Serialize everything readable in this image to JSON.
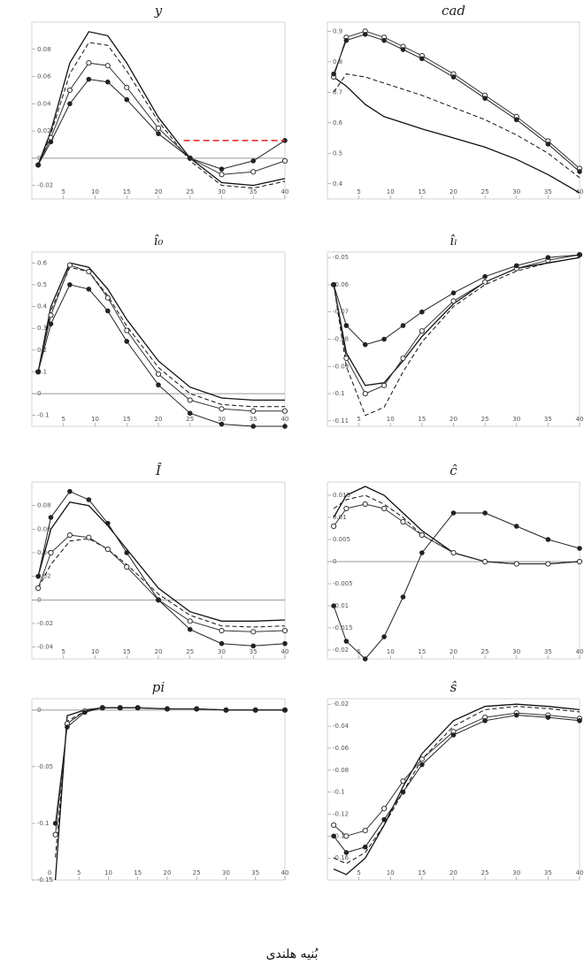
{
  "chart_data": [
    {
      "type": "line",
      "title": "y",
      "x": [
        1,
        3,
        6,
        9,
        12,
        15,
        20,
        25,
        30,
        35,
        40
      ],
      "xlim": [
        0,
        40
      ],
      "xticks": [
        5,
        10,
        15,
        20,
        25,
        30,
        35,
        40
      ],
      "ylim": [
        -0.03,
        0.1
      ],
      "yticks": [
        -0.02,
        0,
        0.02,
        0.04,
        0.06,
        0.08
      ],
      "zero_line": true,
      "reference_line": {
        "y": 0.013,
        "x": [
          24,
          40
        ],
        "color": "#e02020"
      },
      "series": [
        {
          "style": "solid",
          "color": "#111",
          "values": [
            -0.005,
            0.02,
            0.07,
            0.093,
            0.09,
            0.07,
            0.03,
            0.0,
            -0.018,
            -0.02,
            -0.015
          ]
        },
        {
          "style": "dashed",
          "color": "#111",
          "values": [
            -0.005,
            0.018,
            0.062,
            0.085,
            0.083,
            0.064,
            0.027,
            -0.002,
            -0.02,
            -0.022,
            -0.017
          ]
        },
        {
          "style": "circles",
          "color": "#333",
          "values": [
            -0.005,
            0.015,
            0.05,
            0.07,
            0.068,
            0.052,
            0.022,
            0.0,
            -0.012,
            -0.01,
            -0.002
          ]
        },
        {
          "style": "dots",
          "color": "#222",
          "values": [
            -0.005,
            0.012,
            0.04,
            0.058,
            0.056,
            0.043,
            0.018,
            0.0,
            -0.008,
            -0.002,
            0.013
          ]
        }
      ]
    },
    {
      "type": "line",
      "title": "cad",
      "x": [
        1,
        3,
        6,
        9,
        12,
        15,
        20,
        25,
        30,
        35,
        40
      ],
      "xlim": [
        0,
        40
      ],
      "xticks": [
        5,
        10,
        15,
        20,
        25,
        30,
        35,
        40
      ],
      "ylim": [
        0.35,
        0.93
      ],
      "yticks": [
        0.4,
        0.5,
        0.6,
        0.7,
        0.8,
        0.9
      ],
      "zero_line": false,
      "series": [
        {
          "style": "solid",
          "color": "#111",
          "values": [
            0.75,
            0.72,
            0.66,
            0.62,
            0.6,
            0.58,
            0.55,
            0.52,
            0.48,
            0.43,
            0.37
          ]
        },
        {
          "style": "dashed",
          "color": "#111",
          "values": [
            0.7,
            0.76,
            0.75,
            0.73,
            0.71,
            0.69,
            0.65,
            0.61,
            0.56,
            0.5,
            0.42
          ]
        },
        {
          "style": "circles",
          "color": "#333",
          "values": [
            0.75,
            0.88,
            0.9,
            0.88,
            0.85,
            0.82,
            0.76,
            0.69,
            0.62,
            0.54,
            0.45
          ]
        },
        {
          "style": "dots",
          "color": "#222",
          "values": [
            0.76,
            0.87,
            0.89,
            0.87,
            0.84,
            0.81,
            0.75,
            0.68,
            0.61,
            0.53,
            0.44
          ]
        }
      ]
    },
    {
      "type": "line",
      "title": "î₀",
      "x": [
        1,
        3,
        6,
        9,
        12,
        15,
        20,
        25,
        30,
        35,
        40
      ],
      "xlim": [
        0,
        40
      ],
      "xticks": [
        5,
        10,
        15,
        20,
        25,
        30,
        35,
        40
      ],
      "ylim": [
        -0.15,
        0.65
      ],
      "yticks": [
        -0.1,
        0,
        0.1,
        0.2,
        0.3,
        0.4,
        0.5,
        0.6
      ],
      "zero_line": true,
      "series": [
        {
          "style": "solid",
          "color": "#111",
          "values": [
            0.1,
            0.4,
            0.6,
            0.58,
            0.48,
            0.34,
            0.15,
            0.03,
            -0.02,
            -0.03,
            -0.03
          ]
        },
        {
          "style": "dashed",
          "color": "#111",
          "values": [
            0.1,
            0.38,
            0.58,
            0.56,
            0.45,
            0.31,
            0.12,
            0.0,
            -0.05,
            -0.06,
            -0.06
          ]
        },
        {
          "style": "circles",
          "color": "#333",
          "values": [
            0.1,
            0.36,
            0.59,
            0.56,
            0.44,
            0.29,
            0.09,
            -0.03,
            -0.07,
            -0.08,
            -0.08
          ]
        },
        {
          "style": "dots",
          "color": "#222",
          "values": [
            0.1,
            0.32,
            0.5,
            0.48,
            0.38,
            0.24,
            0.04,
            -0.09,
            -0.14,
            -0.15,
            -0.15
          ]
        }
      ]
    },
    {
      "type": "line",
      "title": "îₗ",
      "x": [
        1,
        3,
        6,
        9,
        12,
        15,
        20,
        25,
        30,
        35,
        40
      ],
      "xlim": [
        0,
        40
      ],
      "xticks": [
        5,
        10,
        15,
        20,
        25,
        30,
        35,
        40
      ],
      "ylim": [
        -0.112,
        -0.048
      ],
      "yticks": [
        -0.11,
        -0.1,
        -0.09,
        -0.08,
        -0.07,
        -0.06,
        -0.05
      ],
      "zero_line": false,
      "series": [
        {
          "style": "solid",
          "color": "#111",
          "values": [
            -0.06,
            -0.085,
            -0.097,
            -0.096,
            -0.088,
            -0.079,
            -0.067,
            -0.059,
            -0.054,
            -0.052,
            -0.05
          ]
        },
        {
          "style": "dashed",
          "color": "#111",
          "values": [
            -0.06,
            -0.09,
            -0.108,
            -0.105,
            -0.092,
            -0.081,
            -0.068,
            -0.06,
            -0.055,
            -0.052,
            -0.05
          ]
        },
        {
          "style": "circles",
          "color": "#333",
          "values": [
            -0.06,
            -0.087,
            -0.1,
            -0.097,
            -0.087,
            -0.077,
            -0.066,
            -0.059,
            -0.054,
            -0.051,
            -0.049
          ]
        },
        {
          "style": "dots",
          "color": "#222",
          "values": [
            -0.06,
            -0.075,
            -0.082,
            -0.08,
            -0.075,
            -0.07,
            -0.063,
            -0.057,
            -0.053,
            -0.05,
            -0.049
          ]
        }
      ]
    },
    {
      "type": "line",
      "title": "Î",
      "x": [
        1,
        3,
        6,
        9,
        12,
        15,
        20,
        25,
        30,
        35,
        40
      ],
      "xlim": [
        0,
        40
      ],
      "xticks": [
        5,
        10,
        15,
        20,
        25,
        30,
        35,
        40
      ],
      "ylim": [
        -0.05,
        0.1
      ],
      "yticks": [
        -0.04,
        -0.02,
        0,
        0.02,
        0.04,
        0.06,
        0.08
      ],
      "zero_line": true,
      "series": [
        {
          "style": "solid",
          "color": "#111",
          "values": [
            0.02,
            0.06,
            0.083,
            0.08,
            0.063,
            0.043,
            0.01,
            -0.01,
            -0.018,
            -0.018,
            -0.017
          ]
        },
        {
          "style": "dashed",
          "color": "#111",
          "values": [
            0.01,
            0.03,
            0.05,
            0.052,
            0.043,
            0.03,
            0.005,
            -0.013,
            -0.022,
            -0.023,
            -0.022
          ]
        },
        {
          "style": "circles",
          "color": "#333",
          "values": [
            0.01,
            0.04,
            0.055,
            0.053,
            0.043,
            0.028,
            0.0,
            -0.018,
            -0.026,
            -0.027,
            -0.026
          ]
        },
        {
          "style": "dots",
          "color": "#222",
          "values": [
            0.02,
            0.07,
            0.092,
            0.085,
            0.065,
            0.04,
            0.0,
            -0.025,
            -0.037,
            -0.039,
            -0.037
          ]
        }
      ]
    },
    {
      "type": "line",
      "title": "ĉ",
      "x": [
        1,
        3,
        6,
        9,
        12,
        15,
        20,
        25,
        30,
        35,
        40
      ],
      "xlim": [
        0,
        40
      ],
      "xticks": [
        5,
        10,
        15,
        20,
        25,
        30,
        35,
        40
      ],
      "ylim": [
        -0.022,
        0.018
      ],
      "yticks": [
        -0.02,
        -0.015,
        -0.01,
        -0.005,
        0,
        0.005,
        0.01,
        0.015
      ],
      "zero_line": true,
      "series": [
        {
          "style": "solid",
          "color": "#111",
          "values": [
            0.01,
            0.015,
            0.017,
            0.015,
            0.011,
            0.007,
            0.002,
            0.0,
            -0.0005,
            -0.0005,
            0.0
          ]
        },
        {
          "style": "dashed",
          "color": "#111",
          "values": [
            0.012,
            0.014,
            0.015,
            0.013,
            0.01,
            0.006,
            0.002,
            0.0,
            -0.0005,
            -0.0005,
            0.0
          ]
        },
        {
          "style": "circles",
          "color": "#333",
          "values": [
            0.008,
            0.012,
            0.013,
            0.012,
            0.009,
            0.006,
            0.002,
            0.0,
            -0.0005,
            -0.0005,
            0.0
          ]
        },
        {
          "style": "dots",
          "color": "#222",
          "values": [
            -0.01,
            -0.018,
            -0.022,
            -0.017,
            -0.008,
            0.002,
            0.011,
            0.011,
            0.008,
            0.005,
            0.003
          ]
        }
      ]
    },
    {
      "type": "line",
      "title": "pi",
      "x": [
        1,
        3,
        6,
        9,
        12,
        15,
        20,
        25,
        30,
        35,
        40
      ],
      "xlim": [
        -3,
        40
      ],
      "xticks": [
        0,
        5,
        10,
        15,
        20,
        25,
        30,
        35,
        40
      ],
      "ylim": [
        -0.15,
        0.01
      ],
      "yticks": [
        -0.15,
        -0.1,
        -0.05,
        0
      ],
      "zero_line": true,
      "series": [
        {
          "style": "solid",
          "color": "#111",
          "values": [
            -0.15,
            -0.005,
            0.0,
            0.002,
            0.002,
            0.002,
            0.001,
            0.001,
            0.0,
            0.0,
            0.0
          ]
        },
        {
          "style": "dashed",
          "color": "#111",
          "values": [
            -0.13,
            -0.01,
            -0.001,
            0.002,
            0.002,
            0.002,
            0.001,
            0.001,
            0.0,
            0.0,
            0.0
          ]
        },
        {
          "style": "circles",
          "color": "#333",
          "values": [
            -0.11,
            -0.012,
            -0.001,
            0.002,
            0.002,
            0.002,
            0.001,
            0.001,
            0.0,
            0.0,
            0.0
          ]
        },
        {
          "style": "dots",
          "color": "#222",
          "values": [
            -0.1,
            -0.015,
            -0.002,
            0.002,
            0.002,
            0.002,
            0.001,
            0.001,
            0.0,
            0.0,
            0.0
          ]
        }
      ]
    },
    {
      "type": "line",
      "title": "ŝ",
      "x": [
        1,
        3,
        6,
        9,
        12,
        15,
        20,
        25,
        30,
        35,
        40
      ],
      "xlim": [
        0,
        40
      ],
      "xticks": [
        5,
        10,
        15,
        20,
        25,
        30,
        35,
        40
      ],
      "ylim": [
        -0.18,
        -0.015
      ],
      "yticks": [
        -0.16,
        -0.14,
        -0.12,
        -0.1,
        -0.08,
        -0.06,
        -0.04,
        -0.02
      ],
      "zero_line": false,
      "series": [
        {
          "style": "solid",
          "color": "#111",
          "values": [
            -0.17,
            -0.175,
            -0.16,
            -0.13,
            -0.095,
            -0.065,
            -0.035,
            -0.022,
            -0.02,
            -0.022,
            -0.025
          ]
        },
        {
          "style": "dashed",
          "color": "#111",
          "values": [
            -0.16,
            -0.165,
            -0.155,
            -0.13,
            -0.1,
            -0.07,
            -0.04,
            -0.025,
            -0.022,
            -0.024,
            -0.027
          ]
        },
        {
          "style": "circles",
          "color": "#333",
          "values": [
            -0.13,
            -0.14,
            -0.135,
            -0.115,
            -0.09,
            -0.07,
            -0.045,
            -0.032,
            -0.028,
            -0.03,
            -0.033
          ]
        },
        {
          "style": "dots",
          "color": "#222",
          "values": [
            -0.14,
            -0.155,
            -0.15,
            -0.125,
            -0.1,
            -0.075,
            -0.048,
            -0.035,
            -0.03,
            -0.032,
            -0.035
          ]
        }
      ]
    }
  ],
  "caption": "بُنیه هلندی"
}
